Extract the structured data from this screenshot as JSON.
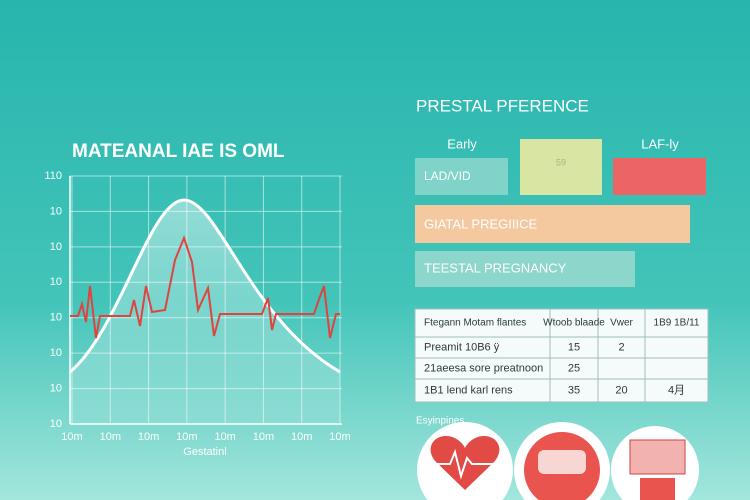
{
  "chart_panel": {
    "title": "MATEANAL IAE IS OML",
    "y_labels": [
      "110",
      "10",
      "10",
      "10",
      "10",
      "10",
      "10",
      "10"
    ],
    "x_labels": [
      "10m",
      "10m",
      "10m",
      "10m",
      "10m",
      "10m",
      "10m",
      "10m"
    ],
    "x_axis_label": "Gestatinl"
  },
  "info_panel": {
    "title": "PRESTAL PFERENCE",
    "early": "Early",
    "late": "LAF-ly",
    "box_left": "LAD/VID",
    "box_middle": "59",
    "bar_peach": "GIATAL PREGIIICE",
    "bar_teal": "TEESTAL PREGNANCY"
  },
  "table": {
    "header": [
      "Ftegann Motam flantes",
      "Wtoob blaade",
      "Vwer",
      "1B9 1B/11"
    ],
    "rows": [
      [
        "Preamit 10B6 ÿ",
        "15",
        "2",
        ""
      ],
      [
        "21aeesa sore preatnoon",
        "25",
        "",
        ""
      ],
      [
        "1B1 lend karl rens",
        "35",
        "20",
        "4月"
      ]
    ]
  },
  "symptoms": {
    "label": "Esyinpines"
  }
}
